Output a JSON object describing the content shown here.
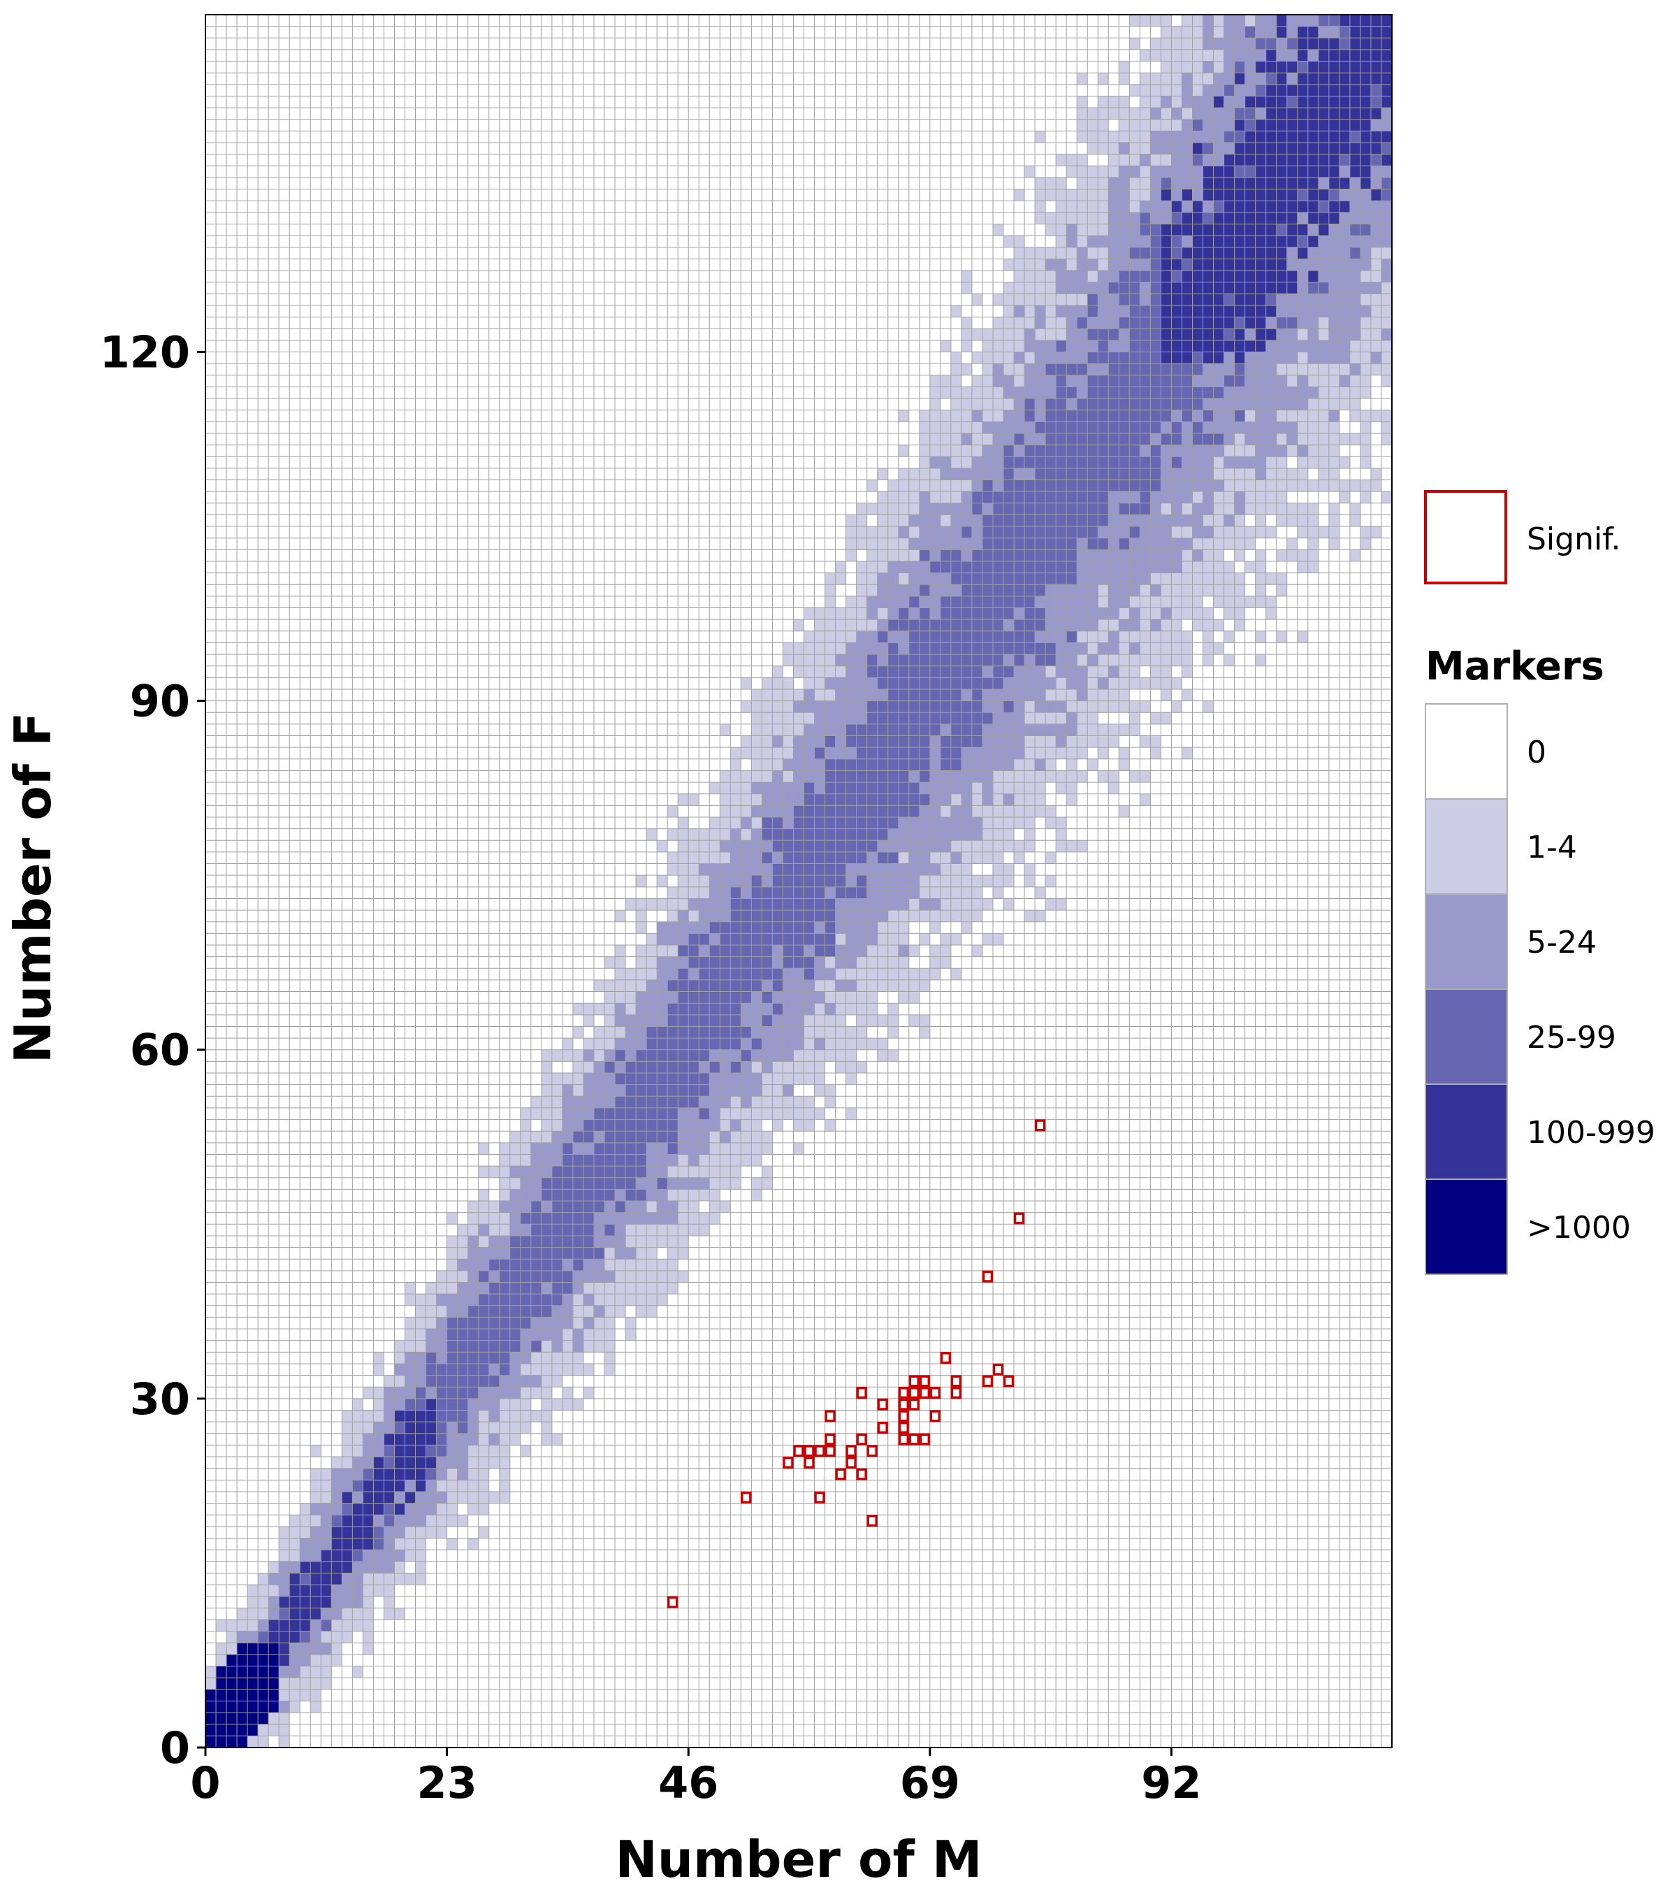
{
  "chart_data": {
    "type": "heatmap",
    "title": "",
    "xlabel": "Number of M",
    "ylabel": "Number of F",
    "xlim": [
      0,
      113
    ],
    "ylim": [
      0,
      149
    ],
    "x_ticks": [
      "0",
      "23",
      "46",
      "69",
      "92"
    ],
    "y_ticks": [
      "0",
      "30",
      "60",
      "90",
      "120"
    ],
    "grid": true,
    "legend_placement": "right",
    "colors": {
      "bin_0": "#ffffff",
      "bin_1_4": "#cccce5",
      "bin_5_24": "#9999cc",
      "bin_25_99": "#6666b2",
      "bin_100_999": "#333399",
      "bin_1000_plus": "#000080",
      "significant_outline": "#cc0000",
      "grid_line": "#a0a0a0"
    },
    "legend": {
      "signif_label": "Signif.",
      "markers_title": "Markers",
      "bins": [
        {
          "label": "0",
          "color": "#ffffff"
        },
        {
          "label": "1-4",
          "color": "#cccce5"
        },
        {
          "label": "5-24",
          "color": "#9999cc"
        },
        {
          "label": "25-99",
          "color": "#6666b2"
        },
        {
          "label": "100-999",
          "color": "#333399"
        },
        {
          "label": ">1000",
          "color": "#000080"
        }
      ]
    },
    "band_model": {
      "description_note": "Approximate density band: cells near the line F = 1.32*M form a diagonal ridge",
      "slope": 1.32,
      "halfwidth_at_0": 4,
      "halfwidth_growth": 0.12
    },
    "significant_points": [
      [
        44,
        12
      ],
      [
        51,
        21
      ],
      [
        55,
        24
      ],
      [
        56,
        25
      ],
      [
        57,
        24
      ],
      [
        57,
        25
      ],
      [
        58,
        21
      ],
      [
        58,
        25
      ],
      [
        59,
        25
      ],
      [
        59,
        26
      ],
      [
        59,
        28
      ],
      [
        60,
        23
      ],
      [
        61,
        24
      ],
      [
        61,
        25
      ],
      [
        62,
        23
      ],
      [
        62,
        26
      ],
      [
        62,
        30
      ],
      [
        63,
        19
      ],
      [
        63,
        25
      ],
      [
        64,
        27
      ],
      [
        64,
        29
      ],
      [
        66,
        26
      ],
      [
        66,
        27
      ],
      [
        66,
        28
      ],
      [
        66,
        29
      ],
      [
        66,
        30
      ],
      [
        67,
        26
      ],
      [
        67,
        29
      ],
      [
        67,
        30
      ],
      [
        67,
        31
      ],
      [
        68,
        26
      ],
      [
        68,
        30
      ],
      [
        68,
        31
      ],
      [
        69,
        28
      ],
      [
        69,
        30
      ],
      [
        70,
        33
      ],
      [
        71,
        30
      ],
      [
        71,
        31
      ],
      [
        74,
        40
      ],
      [
        74,
        31
      ],
      [
        75,
        32
      ],
      [
        76,
        31
      ],
      [
        77,
        45
      ],
      [
        79,
        53
      ]
    ]
  }
}
